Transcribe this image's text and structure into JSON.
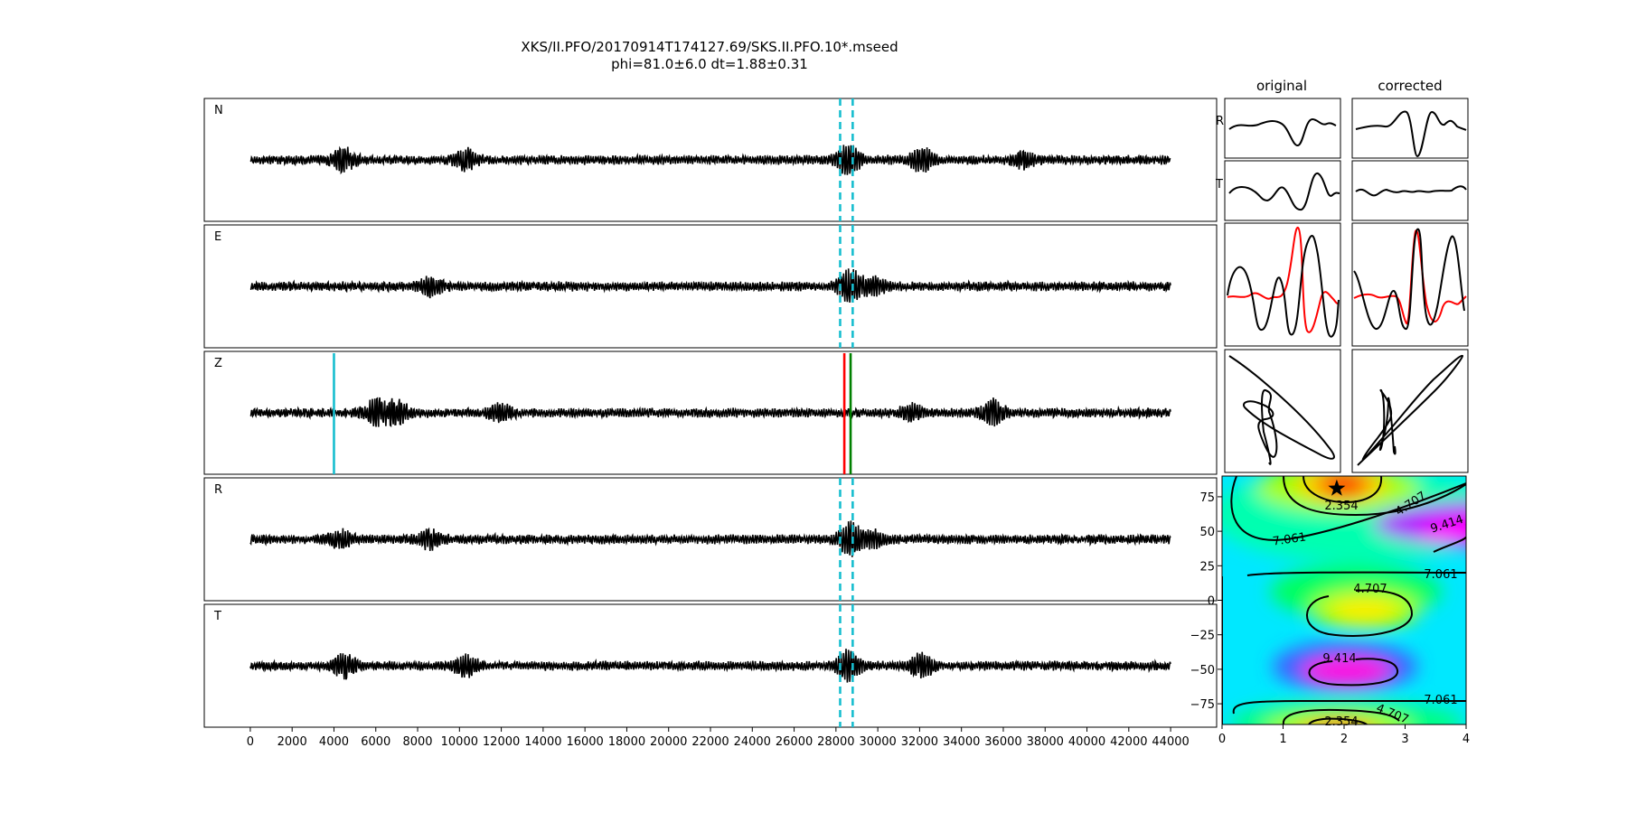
{
  "title": {
    "line1": "XKS/II.PFO/20170914T174127.69/SKS.II.PFO.10*.mseed",
    "line2": "phi=81.0±6.0 dt=1.88±0.31"
  },
  "column_titles": {
    "original": "original",
    "corrected": "corrected"
  },
  "colors": {
    "trace": "#000000",
    "window_marker": "#17becf",
    "pick_red": "#ff0000",
    "pick_green": "#008000",
    "fast_component": "#ff0000"
  },
  "chart_data": [
    {
      "type": "line",
      "description": "Seismogram traces",
      "xlim": [
        -2200,
        46200
      ],
      "x_ticks": [
        0,
        2000,
        4000,
        6000,
        8000,
        10000,
        12000,
        14000,
        16000,
        18000,
        20000,
        22000,
        24000,
        26000,
        28000,
        30000,
        32000,
        34000,
        36000,
        38000,
        40000,
        42000,
        44000
      ],
      "trace_x_range": [
        0,
        44000
      ],
      "series": [
        {
          "name": "N",
          "bursts": [
            [
              4500,
              0.8
            ],
            [
              10300,
              0.65
            ],
            [
              28600,
              1.0
            ],
            [
              32100,
              0.75
            ],
            [
              37000,
              0.45
            ]
          ]
        },
        {
          "name": "E",
          "bursts": [
            [
              8600,
              0.6
            ],
            [
              28700,
              1.15
            ],
            [
              29800,
              0.55
            ]
          ]
        },
        {
          "name": "Z",
          "bursts": [
            [
              6000,
              0.9
            ],
            [
              7000,
              0.8
            ],
            [
              12000,
              0.5
            ],
            [
              31600,
              0.5
            ],
            [
              35500,
              0.85
            ]
          ]
        },
        {
          "name": "R",
          "bursts": [
            [
              4300,
              0.55
            ],
            [
              8600,
              0.6
            ],
            [
              28700,
              1.1
            ],
            [
              29800,
              0.5
            ]
          ]
        },
        {
          "name": "T",
          "bursts": [
            [
              4500,
              0.8
            ],
            [
              10300,
              0.65
            ],
            [
              28600,
              1.0
            ],
            [
              32100,
              0.75
            ]
          ]
        }
      ],
      "window_markers_x": [
        28200,
        28800
      ],
      "z_picks": [
        {
          "x": 4000,
          "color": "#17becf"
        },
        {
          "x": 28400,
          "color": "#ff0000"
        },
        {
          "x": 28700,
          "color": "#008000"
        }
      ]
    },
    {
      "type": "line",
      "description": "Particle motion and component panels",
      "panels": [
        {
          "row": "R",
          "column": "original"
        },
        {
          "row": "T",
          "column": "original"
        },
        {
          "row": "R",
          "column": "corrected"
        },
        {
          "row": "T",
          "column": "corrected"
        }
      ]
    },
    {
      "type": "heatmap",
      "description": "Energy grid (phi vs dt)",
      "xlim": [
        0,
        4
      ],
      "ylim": [
        -90,
        90
      ],
      "x_ticks": [
        0,
        1,
        2,
        3,
        4
      ],
      "y_ticks": [
        75,
        50,
        25,
        0,
        -25,
        -50,
        -75
      ],
      "contour_levels": [
        "2.354",
        "4.707",
        "7.061",
        "9.414"
      ],
      "best_fit": {
        "dt": 1.88,
        "phi": 81.0
      }
    }
  ]
}
